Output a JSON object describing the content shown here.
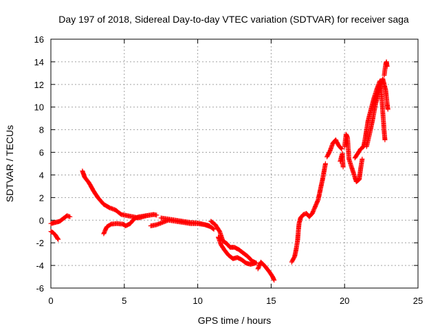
{
  "chart_data": {
    "type": "scatter",
    "title": "Day 197 of 2018, Sidereal Day-to-day VTEC variation (SDTVAR) for receiver saga",
    "xlabel": "GPS time / hours",
    "ylabel": "SDTVAR / TECUs",
    "xlim": [
      0,
      25
    ],
    "ylim": [
      -6,
      16
    ],
    "xticks": [
      0,
      5,
      10,
      15,
      20,
      25
    ],
    "yticks": [
      -6,
      -4,
      -2,
      0,
      2,
      4,
      6,
      8,
      10,
      12,
      14,
      16
    ],
    "grid": true,
    "marker": "+",
    "color": "#ff0000",
    "series": [
      {
        "name": "SDTVAR",
        "segments": [
          [
            [
              0.0,
              -1.0
            ],
            [
              0.15,
              -1.1
            ],
            [
              0.3,
              -1.3
            ],
            [
              0.45,
              -1.6
            ],
            [
              0.5,
              -1.7
            ]
          ],
          [
            [
              0.0,
              -0.3
            ],
            [
              0.3,
              -0.2
            ],
            [
              0.6,
              -0.1
            ],
            [
              0.9,
              0.2
            ],
            [
              1.1,
              0.4
            ],
            [
              1.3,
              0.3
            ]
          ],
          [
            [
              2.15,
              4.35
            ],
            [
              2.3,
              3.8
            ],
            [
              2.6,
              3.3
            ],
            [
              2.9,
              2.6
            ],
            [
              3.2,
              2.0
            ],
            [
              3.6,
              1.4
            ],
            [
              4.0,
              1.1
            ],
            [
              4.4,
              0.9
            ],
            [
              4.8,
              0.5
            ],
            [
              5.2,
              0.4
            ],
            [
              5.6,
              0.3
            ],
            [
              6.0,
              0.2
            ],
            [
              6.5,
              0.4
            ],
            [
              7.0,
              0.5
            ],
            [
              7.2,
              0.45
            ]
          ],
          [
            [
              3.6,
              -1.2
            ],
            [
              3.8,
              -0.6
            ],
            [
              4.1,
              -0.35
            ],
            [
              4.5,
              -0.3
            ],
            [
              4.9,
              -0.35
            ],
            [
              5.1,
              -0.5
            ],
            [
              5.4,
              -0.3
            ],
            [
              5.7,
              0.15
            ],
            [
              6.0,
              0.3
            ],
            [
              6.5,
              0.4
            ],
            [
              7.0,
              0.5
            ]
          ],
          [
            [
              6.8,
              -0.5
            ],
            [
              7.2,
              -0.4
            ],
            [
              7.6,
              -0.2
            ],
            [
              8.0,
              0.0
            ],
            [
              8.5,
              -0.1
            ],
            [
              9.0,
              -0.2
            ],
            [
              9.5,
              -0.3
            ],
            [
              10.0,
              -0.3
            ],
            [
              10.5,
              -0.4
            ],
            [
              10.8,
              -0.5
            ]
          ],
          [
            [
              7.5,
              0.2
            ],
            [
              8.0,
              0.1
            ],
            [
              8.5,
              0.0
            ],
            [
              9.0,
              -0.1
            ],
            [
              9.5,
              -0.2
            ],
            [
              10.0,
              -0.25
            ],
            [
              10.5,
              -0.4
            ],
            [
              10.9,
              -0.6
            ],
            [
              11.1,
              -0.8
            ]
          ],
          [
            [
              10.9,
              -0.1
            ],
            [
              11.2,
              -0.4
            ],
            [
              11.5,
              -1.0
            ],
            [
              11.7,
              -1.8
            ],
            [
              12.0,
              -2.1
            ],
            [
              12.2,
              -2.4
            ],
            [
              12.5,
              -2.4
            ],
            [
              12.8,
              -2.6
            ],
            [
              13.1,
              -2.9
            ],
            [
              13.4,
              -3.2
            ],
            [
              13.7,
              -3.6
            ],
            [
              14.0,
              -3.8
            ]
          ],
          [
            [
              11.4,
              -1.5
            ],
            [
              11.6,
              -2.2
            ],
            [
              11.8,
              -2.6
            ],
            [
              12.1,
              -3.1
            ],
            [
              12.4,
              -3.4
            ],
            [
              12.7,
              -3.3
            ],
            [
              13.0,
              -3.5
            ],
            [
              13.3,
              -3.8
            ],
            [
              13.6,
              -3.9
            ],
            [
              13.9,
              -3.8
            ]
          ],
          [
            [
              14.1,
              -4.3
            ],
            [
              14.3,
              -3.7
            ],
            [
              14.6,
              -4.1
            ],
            [
              14.9,
              -4.6
            ],
            [
              15.1,
              -5.0
            ],
            [
              15.2,
              -5.3
            ]
          ],
          [
            [
              16.4,
              -3.7
            ],
            [
              16.6,
              -3.2
            ],
            [
              16.7,
              -2.6
            ],
            [
              16.8,
              -1.8
            ],
            [
              16.85,
              -1.0
            ],
            [
              16.9,
              -0.3
            ],
            [
              17.0,
              0.2
            ],
            [
              17.2,
              0.5
            ],
            [
              17.4,
              0.6
            ],
            [
              17.6,
              0.3
            ],
            [
              17.8,
              0.6
            ],
            [
              18.0,
              1.2
            ],
            [
              18.2,
              1.8
            ],
            [
              18.3,
              2.4
            ],
            [
              18.4,
              3.0
            ],
            [
              18.5,
              3.6
            ],
            [
              18.6,
              4.3
            ],
            [
              18.7,
              5.0
            ]
          ],
          [
            [
              18.8,
              5.6
            ],
            [
              19.0,
              6.1
            ],
            [
              19.2,
              6.8
            ],
            [
              19.4,
              7.1
            ],
            [
              19.6,
              6.6
            ],
            [
              19.8,
              6.3
            ]
          ],
          [
            [
              19.7,
              5.2
            ],
            [
              19.85,
              5.9
            ],
            [
              19.9,
              4.7
            ]
          ],
          [
            [
              20.0,
              6.5
            ],
            [
              20.1,
              7.6
            ],
            [
              20.2,
              7.3
            ],
            [
              20.3,
              5.4
            ],
            [
              20.5,
              4.6
            ],
            [
              20.7,
              3.8
            ],
            [
              20.8,
              3.4
            ],
            [
              21.0,
              3.6
            ],
            [
              21.1,
              4.6
            ],
            [
              21.2,
              5.4
            ]
          ],
          [
            [
              20.7,
              5.5
            ],
            [
              20.9,
              5.9
            ],
            [
              21.1,
              6.3
            ],
            [
              21.3,
              6.5
            ],
            [
              21.4,
              7.2
            ],
            [
              21.5,
              8.0
            ],
            [
              21.6,
              8.8
            ],
            [
              21.8,
              9.8
            ],
            [
              22.0,
              10.8
            ],
            [
              22.2,
              11.6
            ],
            [
              22.4,
              12.3
            ],
            [
              22.5,
              11.4
            ],
            [
              22.6,
              9.6
            ],
            [
              22.7,
              7.8
            ],
            [
              22.75,
              7.1
            ]
          ],
          [
            [
              21.5,
              6.5
            ],
            [
              21.7,
              7.6
            ],
            [
              21.9,
              8.8
            ],
            [
              22.1,
              10.2
            ],
            [
              22.3,
              11.2
            ],
            [
              22.5,
              12.1
            ],
            [
              22.6,
              12.5
            ],
            [
              22.7,
              12.0
            ],
            [
              22.8,
              11.5
            ],
            [
              22.9,
              10.3
            ],
            [
              22.95,
              9.8
            ]
          ],
          [
            [
              22.7,
              12.8
            ],
            [
              22.8,
              13.8
            ],
            [
              22.85,
              14.0
            ],
            [
              22.9,
              13.6
            ]
          ]
        ]
      }
    ]
  }
}
